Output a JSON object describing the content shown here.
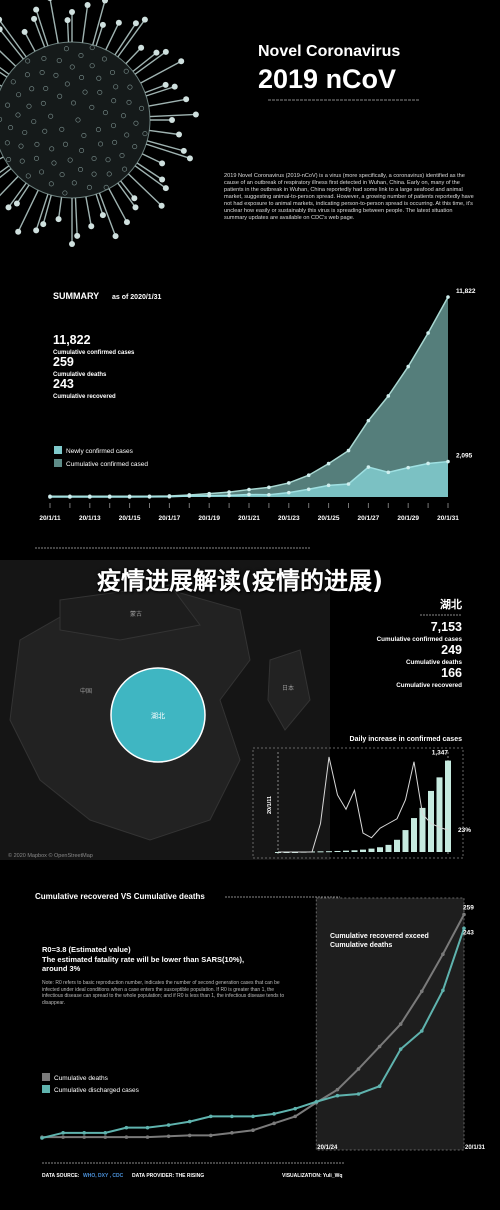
{
  "header": {
    "title": "Novel Coronavirus",
    "subtitle": "2019 nCoV",
    "intro": "2019 Novel Coronavirus (2019-nCoV) is a virus (more specifically, a coronavirus) identified as the cause of an outbreak of respiratory illness first detected in Wuhan, China. Early on, many of the patients in the outbreak in Wuhan, China reportedly had some link to a large seafood and animal market, suggesting animal-to-person spread. However, a growing number of patients reportedly have not had exposure to animal markets, indicating person-to-person spread is occurring. At this time, it's unclear how easily or sustainably this virus is spreading between people. The latest situation summary updates are available on CDC's web page."
  },
  "overlay_title": "疫情进展解读(疫情的进展)",
  "map": {
    "labels": [
      "蒙古",
      "中国",
      "日本"
    ],
    "region": "湖北",
    "copyright": "© 2020 Mapbox © OpenStreetMap",
    "panel_title": "湖北",
    "stats": [
      {
        "value": "7,153",
        "label": "Cumulative confirmed cases"
      },
      {
        "value": "249",
        "label": "Cumulative deaths"
      },
      {
        "value": "166",
        "label": "Cumulative recovered"
      }
    ]
  },
  "chart_data": [
    {
      "type": "area",
      "title": "SUMMARY",
      "subtitle": "as of 2020/1/31",
      "stats": [
        {
          "value": "11,822",
          "label": "Cumulative confirmed cases"
        },
        {
          "value": "259",
          "label": "Cumulative deaths"
        },
        {
          "value": "243",
          "label": "Cumulative recovered"
        }
      ],
      "categories": [
        "20/1/11",
        null,
        "20/1/13",
        null,
        "20/1/15",
        null,
        "20/1/17",
        null,
        "20/1/19",
        null,
        "20/1/21",
        null,
        "20/1/23",
        null,
        "20/1/25",
        null,
        "20/1/27",
        null,
        "20/1/29",
        null,
        "20/1/31"
      ],
      "series": [
        {
          "name": "Newly confirmed cases",
          "color": "#7fc9cb",
          "values": [
            0,
            0,
            0,
            0,
            0,
            4,
            17,
            59,
            77,
            93,
            149,
            131,
            259,
            457,
            688,
            769,
            1771,
            1459,
            1737,
            1982,
            2095
          ],
          "value_labels": [
            null,
            null,
            null,
            null,
            null,
            null,
            null,
            null,
            null,
            null,
            null,
            null,
            null,
            null,
            null,
            null,
            null,
            null,
            null,
            null,
            "2,095"
          ]
        },
        {
          "name": "Cumulative confirmed cased",
          "color": "#5e8c88",
          "values": [
            41,
            41,
            41,
            41,
            41,
            45,
            62,
            121,
            198,
            291,
            440,
            571,
            830,
            1287,
            1975,
            2744,
            4515,
            5974,
            7711,
            9692,
            11822
          ],
          "value_labels": [
            null,
            null,
            null,
            null,
            null,
            null,
            null,
            null,
            null,
            null,
            null,
            null,
            null,
            null,
            null,
            null,
            null,
            null,
            null,
            null,
            "11,822"
          ]
        }
      ],
      "ylim": [
        0,
        12000
      ]
    },
    {
      "type": "bar",
      "title": "Daily increase in confirmed cases",
      "categories": [
        "20/1/11",
        null,
        null,
        null,
        null,
        null,
        null,
        null,
        null,
        null,
        null,
        null,
        null,
        null,
        null,
        null,
        null,
        null,
        null,
        null,
        "20/1/31"
      ],
      "series": [
        {
          "color": "#c6eadf",
          "values": [
            0,
            0,
            0,
            5,
            8,
            10,
            12,
            15,
            20,
            25,
            35,
            50,
            70,
            105,
            180,
            323,
            500,
            650,
            900,
            1100,
            1347
          ],
          "value_labels": [
            null,
            null,
            null,
            null,
            null,
            null,
            null,
            null,
            null,
            null,
            null,
            null,
            null,
            null,
            null,
            null,
            null,
            null,
            null,
            null,
            "1,347"
          ]
        },
        {
          "color": "#d8d8d8",
          "axis": "y2",
          "values": [
            0,
            0,
            0,
            0,
            0,
            30,
            100,
            60,
            45,
            65,
            20,
            15,
            25,
            30,
            35,
            55,
            95,
            40,
            30,
            26,
            23
          ],
          "value_labels": [
            null,
            null,
            null,
            null,
            null,
            null,
            null,
            null,
            null,
            null,
            null,
            null,
            null,
            null,
            null,
            null,
            null,
            null,
            null,
            null,
            "23%"
          ]
        }
      ],
      "ylim": [
        0,
        1400
      ],
      "y2lim": [
        0,
        100
      ]
    },
    {
      "type": "line",
      "title": "Cumulative recovered VS Cumulative deaths",
      "annotations": {
        "r0": "R0=3.8 (Estimated value)",
        "fatality": "The estimated fatality rate will be lower than SARS(10%), around 3%",
        "note": "Note: R0 refers to basic reproduction number, indicates the number of second generation cases that can be infected under ideal conditions when a case enters the susceptible population. If R0 is greater than 1, the infectious disease can spread to the whole population; and if R0 is less than 1, the infectious disease tends to disappear.",
        "highlight": "Cumulative recovered exceed Cumulative deaths"
      },
      "categories": [
        null,
        null,
        null,
        null,
        null,
        null,
        null,
        null,
        null,
        null,
        null,
        null,
        null,
        "20/1/24",
        null,
        null,
        null,
        null,
        null,
        null,
        "20/1/31"
      ],
      "series": [
        {
          "name": "Cumulative deaths",
          "color": "#7a7a7a",
          "values": [
            1,
            1,
            1,
            1,
            1,
            1,
            2,
            3,
            3,
            6,
            9,
            17,
            25,
            41,
            56,
            80,
            106,
            132,
            170,
            213,
            259
          ]
        },
        {
          "name": "Cumulative discharged cases",
          "color": "#5fb3ae",
          "values": [
            0,
            6,
            6,
            6,
            12,
            12,
            15,
            19,
            25,
            25,
            25,
            28,
            34,
            42,
            49,
            51,
            60,
            103,
            124,
            171,
            243
          ]
        }
      ],
      "ylim": [
        0,
        270
      ]
    }
  ],
  "footer": {
    "source_label": "DATA SOURCE:",
    "source": "WHO, DXY , CDC",
    "provider": "DATA PROVIDER: THE RISING",
    "visualization": "VISUALIZATION: Yuli_Wq"
  }
}
